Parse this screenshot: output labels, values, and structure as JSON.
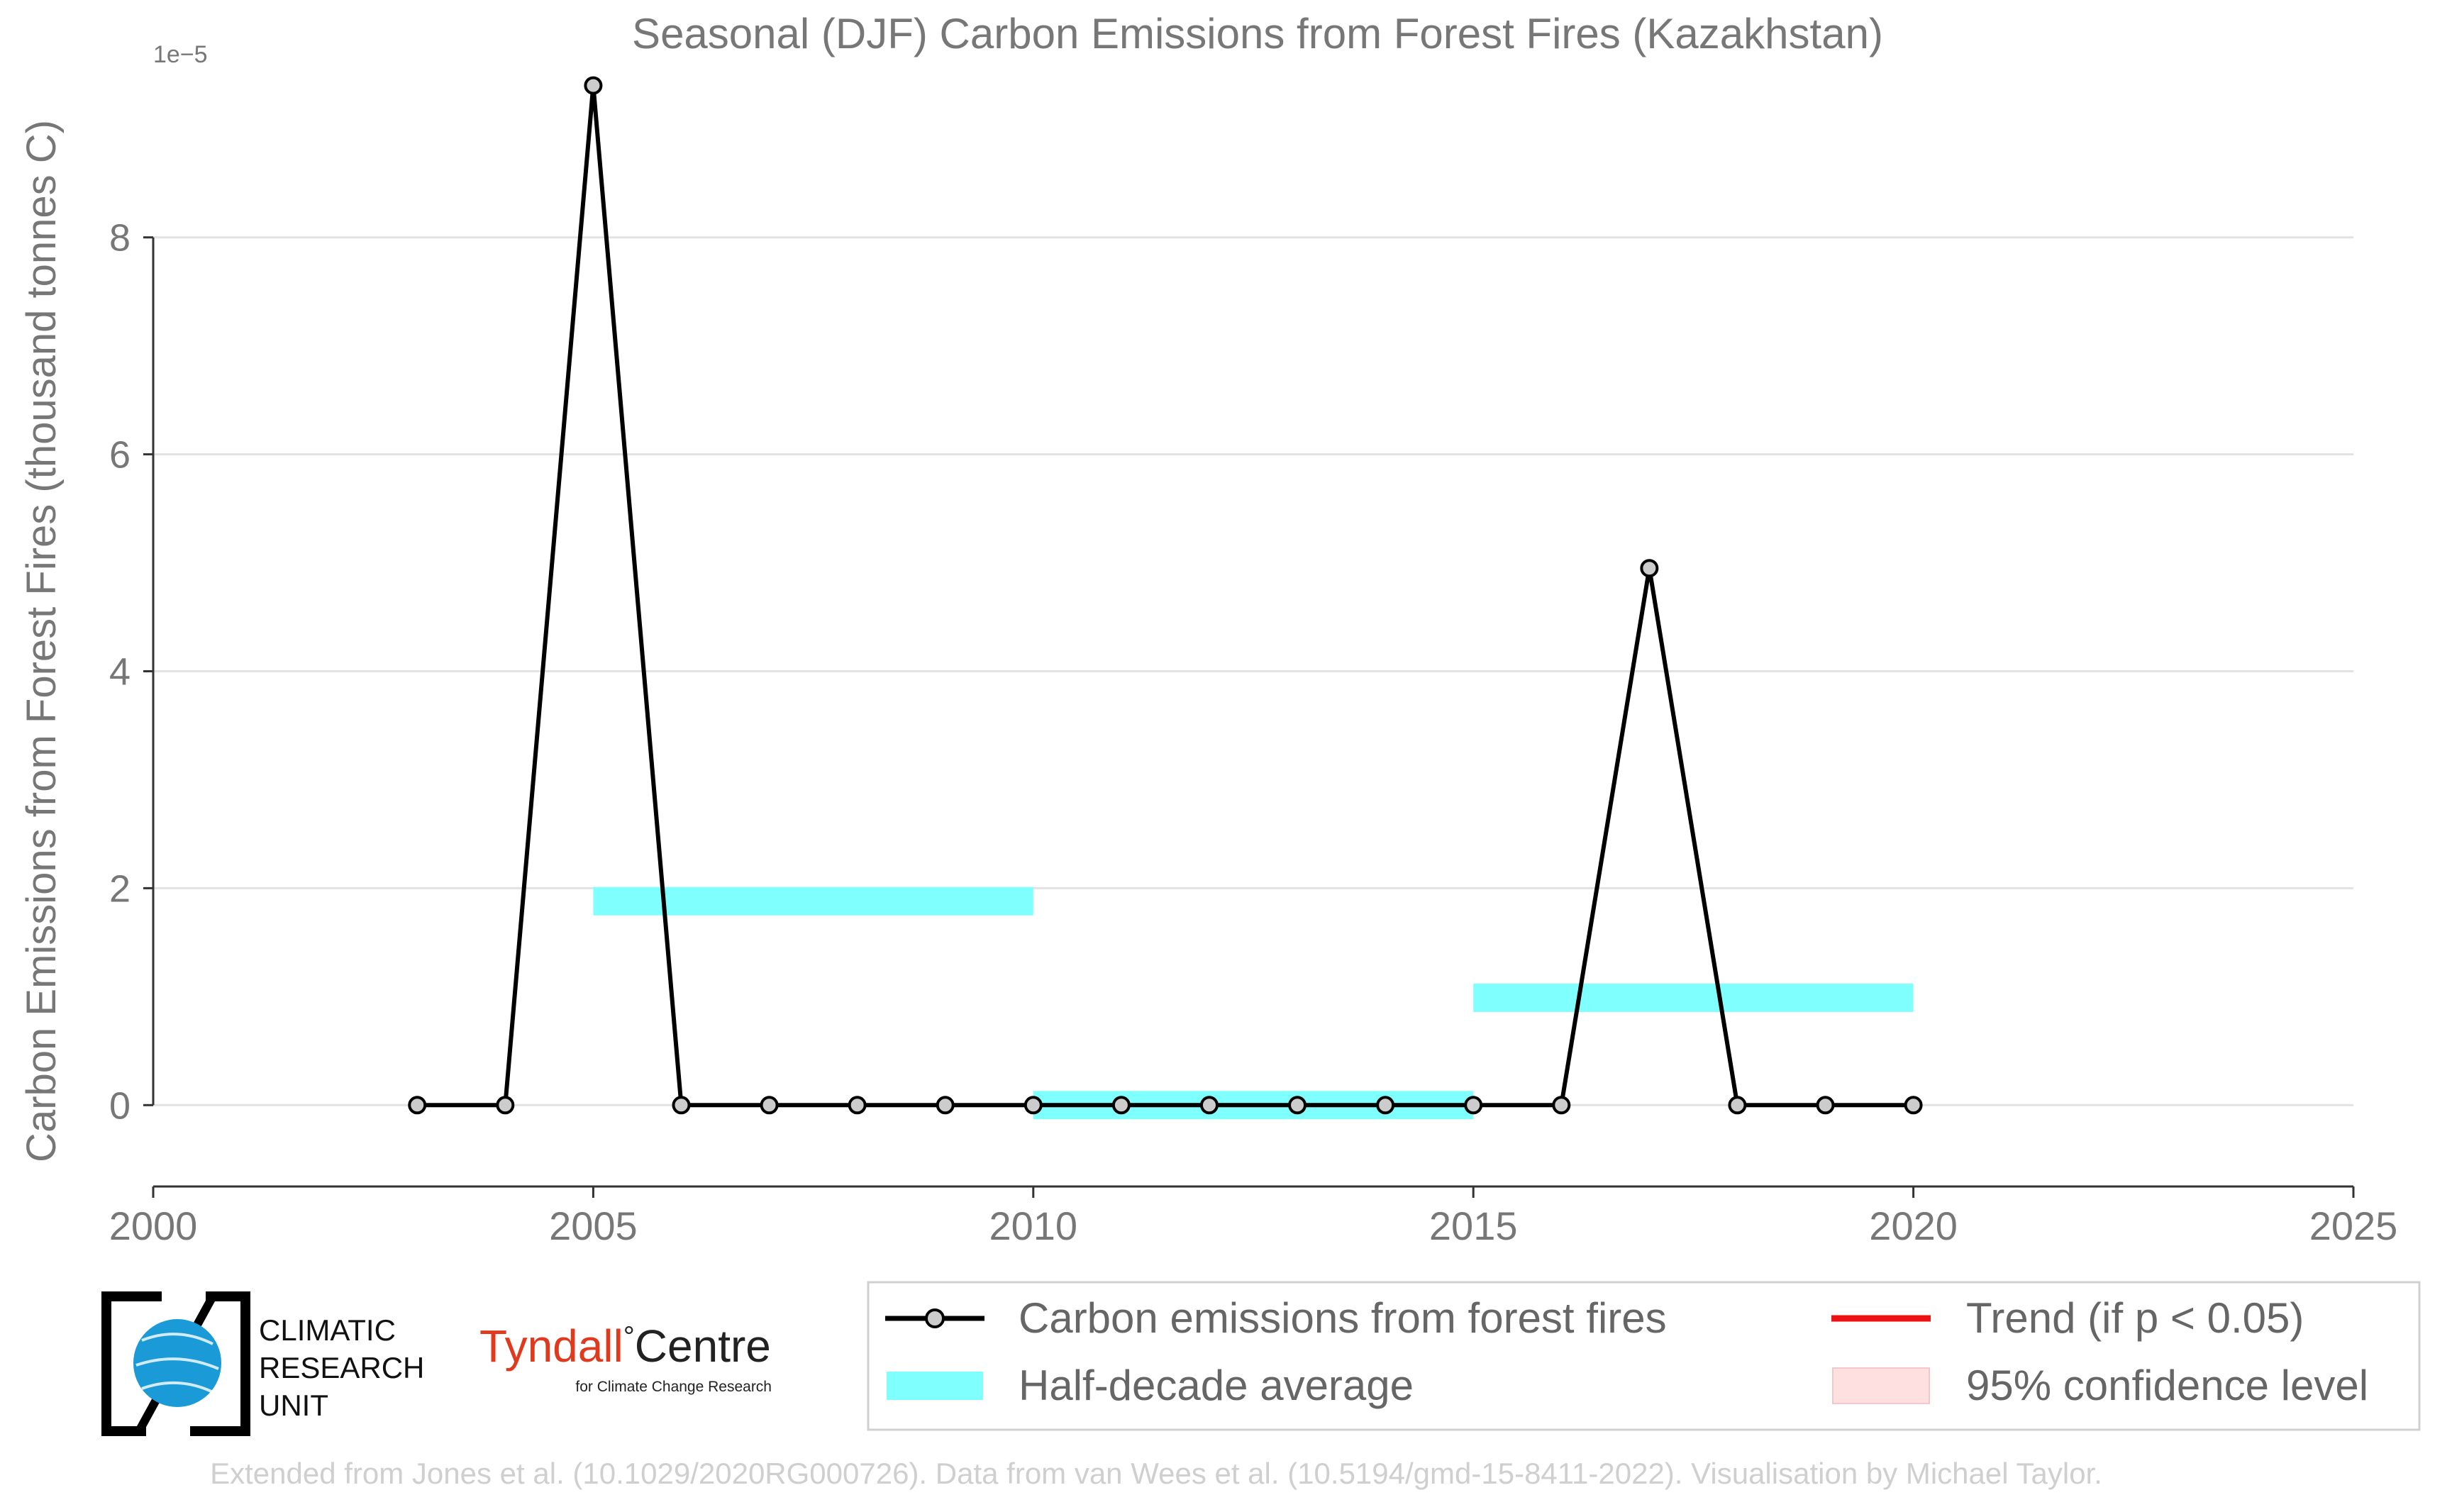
{
  "chart_data": {
    "type": "line",
    "title": "Seasonal (DJF) Carbon Emissions from Forest Fires (Kazakhstan)",
    "xlabel": "",
    "ylabel": "Carbon Emissions from Forest Fires (thousand tonnes C)",
    "y_offset_label": "1e−5",
    "y_scale_exponent": -5,
    "xlim": [
      2000,
      2025
    ],
    "ylim": [
      -0.75,
      9.6
    ],
    "x_ticks": [
      2000,
      2005,
      2010,
      2015,
      2020,
      2025
    ],
    "x_tick_labels": [
      "2000",
      "2005",
      "2010",
      "2015",
      "2020",
      "2025"
    ],
    "y_ticks": [
      0,
      2,
      4,
      6,
      8
    ],
    "y_tick_labels": [
      "0",
      "2",
      "4",
      "6",
      "8"
    ],
    "grid": "horizontal",
    "legend_position": "bottom",
    "series": [
      {
        "name": "Carbon emissions from forest fires",
        "color": "#000000",
        "x": [
          2003,
          2004,
          2005,
          2006,
          2007,
          2008,
          2009,
          2010,
          2011,
          2012,
          2013,
          2014,
          2015,
          2016,
          2017,
          2018,
          2019,
          2020
        ],
        "values": [
          0,
          0,
          9.4,
          0,
          0,
          0,
          0,
          0,
          0,
          0,
          0,
          0,
          0,
          0,
          4.95,
          0,
          0,
          0
        ]
      }
    ],
    "half_decade_average": {
      "name": "Half-decade average",
      "color": "#80ffff",
      "segments": [
        {
          "start": 2005,
          "end": 2010,
          "value": 1.88
        },
        {
          "start": 2010,
          "end": 2015,
          "value": 0.0
        },
        {
          "start": 2015,
          "end": 2020,
          "value": 0.99
        }
      ]
    },
    "legend": [
      {
        "label": "Carbon emissions from forest fires",
        "kind": "line-marker",
        "color": "#000000"
      },
      {
        "label": "Half-decade average",
        "kind": "band",
        "color": "#80ffff"
      },
      {
        "label": "Trend (if p < 0.05)",
        "kind": "line",
        "color": "#ee1111"
      },
      {
        "label": "95% confidence level",
        "kind": "patch",
        "color": "#ffe0e0"
      }
    ]
  },
  "logos": {
    "cru_line1": "CLIMATIC",
    "cru_line2": "RESEARCH",
    "cru_line3": "UNIT",
    "tyndall_word1": "Tyndall",
    "tyndall_degree": "°",
    "tyndall_word2": "Centre",
    "tyndall_sub": "for Climate Change Research"
  },
  "footer": "Extended from Jones et al. (10.1029/2020RG000726). Data from van Wees et al. (10.5194/gmd-15-8411-2022). Visualisation by Michael Taylor."
}
